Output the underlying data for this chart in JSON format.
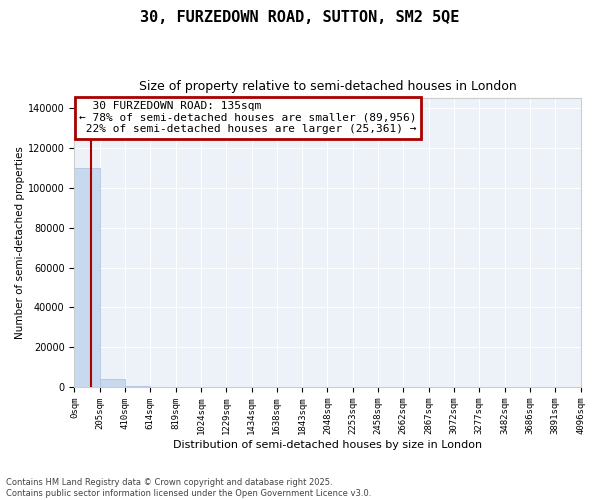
{
  "title": "30, FURZEDOWN ROAD, SUTTON, SM2 5QE",
  "subtitle": "Size of property relative to semi-detached houses in London",
  "xlabel": "Distribution of semi-detached houses by size in London",
  "ylabel": "Number of semi-detached properties",
  "property_size": 135,
  "property_label": "30 FURZEDOWN ROAD: 135sqm",
  "pct_smaller": 78,
  "count_smaller": 89956,
  "pct_larger": 22,
  "count_larger": 25361,
  "bar_edges": [
    0,
    205,
    410,
    614,
    819,
    1024,
    1229,
    1434,
    1638,
    1843,
    2048,
    2253,
    2458,
    2662,
    2867,
    3072,
    3277,
    3482,
    3686,
    3891,
    4096
  ],
  "bar_heights": [
    110000,
    4200,
    600,
    250,
    150,
    100,
    70,
    55,
    45,
    35,
    30,
    25,
    20,
    18,
    15,
    12,
    10,
    8,
    6,
    5
  ],
  "bar_color": "#c8d8ee",
  "bar_edge_color": "#a8c0de",
  "vline_color": "#aa0000",
  "vline_x": 135,
  "ylim": [
    0,
    145000
  ],
  "yticks": [
    0,
    20000,
    40000,
    60000,
    80000,
    100000,
    120000,
    140000
  ],
  "annotation_box_color": "#aa0000",
  "background_color": "#edf2f9",
  "footer": "Contains HM Land Registry data © Crown copyright and database right 2025.\nContains public sector information licensed under the Open Government Licence v3.0."
}
